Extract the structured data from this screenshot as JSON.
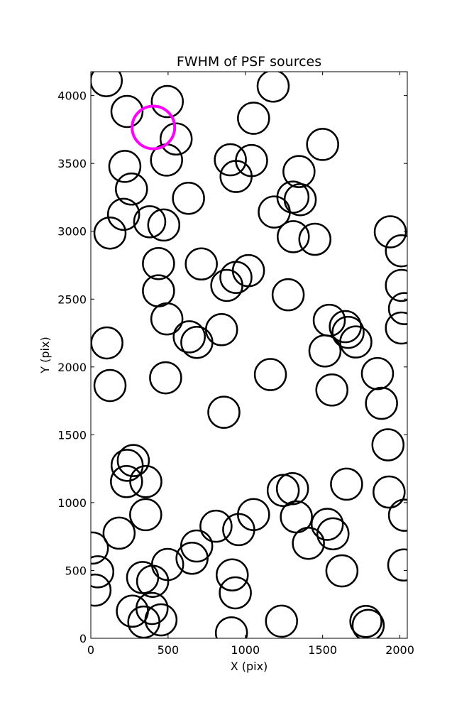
{
  "chart_data": {
    "type": "scatter",
    "title": "FWHM of PSF sources",
    "xlabel": "X (pix)",
    "ylabel": "Y (pix)",
    "xlim": [
      0,
      2048
    ],
    "ylim": [
      0,
      4176
    ],
    "xticks": [
      0,
      500,
      1000,
      1500,
      2000
    ],
    "yticks": [
      0,
      500,
      1000,
      1500,
      2000,
      2500,
      3000,
      3500,
      4000
    ],
    "grid": false,
    "marker": "open-circle",
    "colors": {
      "default": "#000000",
      "highlight": "#ff00ff"
    },
    "sources": [
      {
        "x": 100,
        "y": 4110
      },
      {
        "x": 234,
        "y": 3883
      },
      {
        "x": 495,
        "y": 3956
      },
      {
        "x": 1180,
        "y": 4070
      },
      {
        "x": 1053,
        "y": 3833
      },
      {
        "x": 552,
        "y": 3680
      },
      {
        "x": 1500,
        "y": 3640
      },
      {
        "x": 220,
        "y": 3478
      },
      {
        "x": 490,
        "y": 3525
      },
      {
        "x": 903,
        "y": 3527
      },
      {
        "x": 1040,
        "y": 3521
      },
      {
        "x": 940,
        "y": 3404
      },
      {
        "x": 1347,
        "y": 3440
      },
      {
        "x": 263,
        "y": 3311
      },
      {
        "x": 632,
        "y": 3243
      },
      {
        "x": 1308,
        "y": 3252
      },
      {
        "x": 1355,
        "y": 3233
      },
      {
        "x": 1187,
        "y": 3142
      },
      {
        "x": 212,
        "y": 3125
      },
      {
        "x": 381,
        "y": 3070
      },
      {
        "x": 472,
        "y": 3046
      },
      {
        "x": 124,
        "y": 2987
      },
      {
        "x": 1310,
        "y": 2960
      },
      {
        "x": 1450,
        "y": 2941
      },
      {
        "x": 1938,
        "y": 2996
      },
      {
        "x": 2010,
        "y": 2856
      },
      {
        "x": 438,
        "y": 2762
      },
      {
        "x": 715,
        "y": 2759
      },
      {
        "x": 1020,
        "y": 2710
      },
      {
        "x": 939,
        "y": 2660
      },
      {
        "x": 880,
        "y": 2601
      },
      {
        "x": 438,
        "y": 2561
      },
      {
        "x": 1277,
        "y": 2532
      },
      {
        "x": 2010,
        "y": 2601
      },
      {
        "x": 2030,
        "y": 2430
      },
      {
        "x": 492,
        "y": 2354
      },
      {
        "x": 1543,
        "y": 2344
      },
      {
        "x": 1647,
        "y": 2297
      },
      {
        "x": 1665,
        "y": 2255
      },
      {
        "x": 1715,
        "y": 2184
      },
      {
        "x": 846,
        "y": 2275
      },
      {
        "x": 637,
        "y": 2222
      },
      {
        "x": 686,
        "y": 2181
      },
      {
        "x": 104,
        "y": 2177
      },
      {
        "x": 1515,
        "y": 2118
      },
      {
        "x": 2010,
        "y": 2287
      },
      {
        "x": 484,
        "y": 1920
      },
      {
        "x": 1162,
        "y": 1944
      },
      {
        "x": 1855,
        "y": 1951
      },
      {
        "x": 124,
        "y": 1863
      },
      {
        "x": 1560,
        "y": 1830
      },
      {
        "x": 1881,
        "y": 1732
      },
      {
        "x": 861,
        "y": 1666
      },
      {
        "x": 1923,
        "y": 1426
      },
      {
        "x": 275,
        "y": 1310
      },
      {
        "x": 235,
        "y": 1275
      },
      {
        "x": 231,
        "y": 1155
      },
      {
        "x": 356,
        "y": 1155
      },
      {
        "x": 1655,
        "y": 1136
      },
      {
        "x": 1245,
        "y": 1090
      },
      {
        "x": 1305,
        "y": 1103
      },
      {
        "x": 1930,
        "y": 1078
      },
      {
        "x": 355,
        "y": 911
      },
      {
        "x": 1053,
        "y": 912
      },
      {
        "x": 1330,
        "y": 895
      },
      {
        "x": 2030,
        "y": 907
      },
      {
        "x": 183,
        "y": 775
      },
      {
        "x": 810,
        "y": 826
      },
      {
        "x": 957,
        "y": 801
      },
      {
        "x": 1530,
        "y": 840
      },
      {
        "x": 1567,
        "y": 770
      },
      {
        "x": 10,
        "y": 665
      },
      {
        "x": 685,
        "y": 680
      },
      {
        "x": 1408,
        "y": 700
      },
      {
        "x": 655,
        "y": 590
      },
      {
        "x": 497,
        "y": 544
      },
      {
        "x": 2025,
        "y": 540
      },
      {
        "x": 45,
        "y": 490
      },
      {
        "x": 1625,
        "y": 497
      },
      {
        "x": 335,
        "y": 448
      },
      {
        "x": 400,
        "y": 420
      },
      {
        "x": 915,
        "y": 467
      },
      {
        "x": 27,
        "y": 355
      },
      {
        "x": 935,
        "y": 335
      },
      {
        "x": 269,
        "y": 200
      },
      {
        "x": 396,
        "y": 220
      },
      {
        "x": 343,
        "y": 120
      },
      {
        "x": 454,
        "y": 136
      },
      {
        "x": 1234,
        "y": 126
      },
      {
        "x": 1780,
        "y": 124
      },
      {
        "x": 1795,
        "y": 95
      },
      {
        "x": 910,
        "y": 40
      }
    ],
    "highlighted": [
      {
        "x": 405,
        "y": 3765
      }
    ]
  }
}
